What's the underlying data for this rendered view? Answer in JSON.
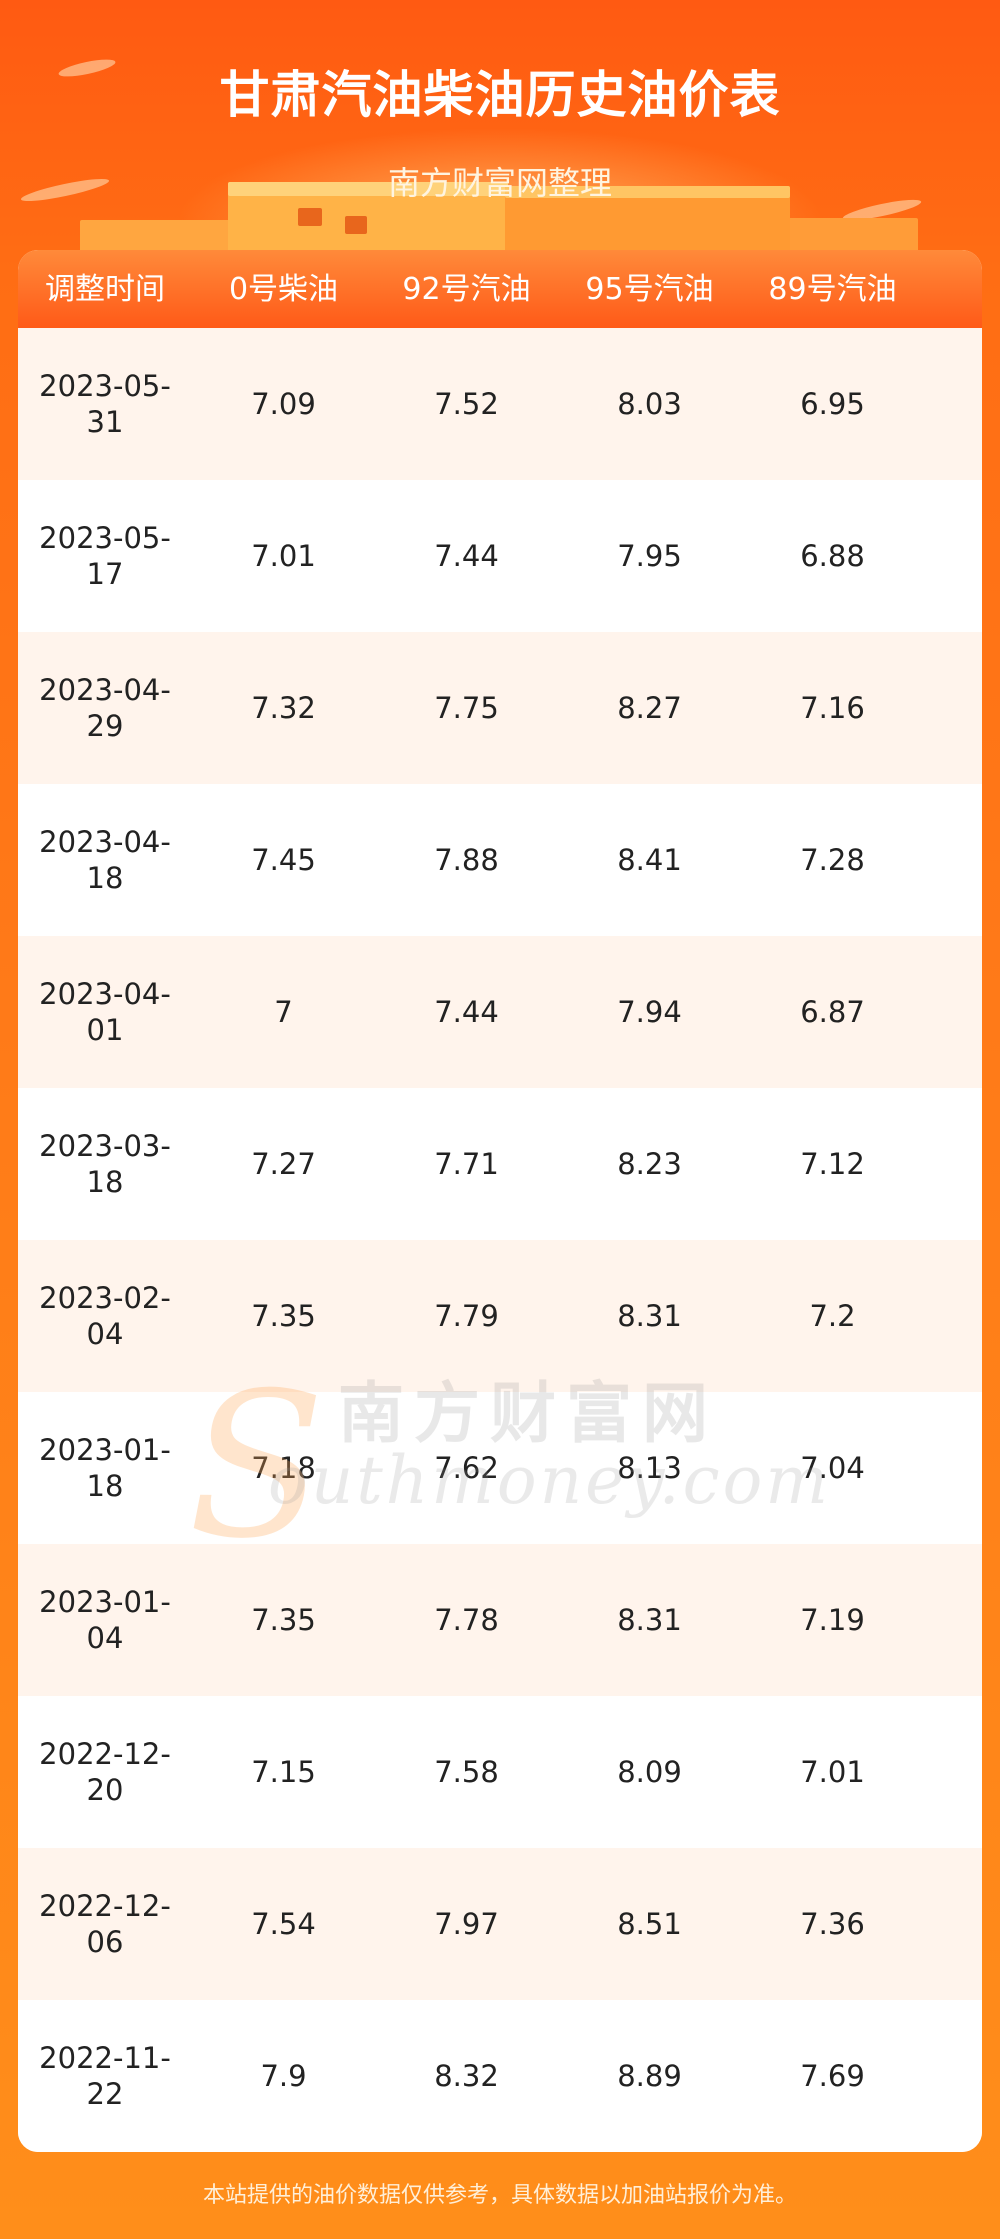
{
  "header": {
    "title": "甘肃汽油柴油历史油价表",
    "subtitle": "南方财富网整理"
  },
  "table": {
    "columns": [
      "调整时间",
      "0号柴油",
      "92号汽油",
      "95号汽油",
      "89号汽油"
    ],
    "rows": [
      [
        "2023-05-31",
        "7.09",
        "7.52",
        "8.03",
        "6.95"
      ],
      [
        "2023-05-17",
        "7.01",
        "7.44",
        "7.95",
        "6.88"
      ],
      [
        "2023-04-29",
        "7.32",
        "7.75",
        "8.27",
        "7.16"
      ],
      [
        "2023-04-18",
        "7.45",
        "7.88",
        "8.41",
        "7.28"
      ],
      [
        "2023-04-01",
        "7",
        "7.44",
        "7.94",
        "6.87"
      ],
      [
        "2023-03-18",
        "7.27",
        "7.71",
        "8.23",
        "7.12"
      ],
      [
        "2023-02-04",
        "7.35",
        "7.79",
        "8.31",
        "7.2"
      ],
      [
        "2023-01-18",
        "7.18",
        "7.62",
        "8.13",
        "7.04"
      ],
      [
        "2023-01-04",
        "7.35",
        "7.78",
        "8.31",
        "7.19"
      ],
      [
        "2022-12-20",
        "7.15",
        "7.58",
        "8.09",
        "7.01"
      ],
      [
        "2022-12-06",
        "7.54",
        "7.97",
        "8.51",
        "7.36"
      ],
      [
        "2022-11-22",
        "7.9",
        "8.32",
        "8.89",
        "7.69"
      ]
    ]
  },
  "watermark": {
    "letter": "S",
    "cn": "南方财富网",
    "en": "outhmoney.com"
  },
  "footer": {
    "note": "本站提供的油价数据仅供参考，具体数据以加油站报价为准。"
  }
}
